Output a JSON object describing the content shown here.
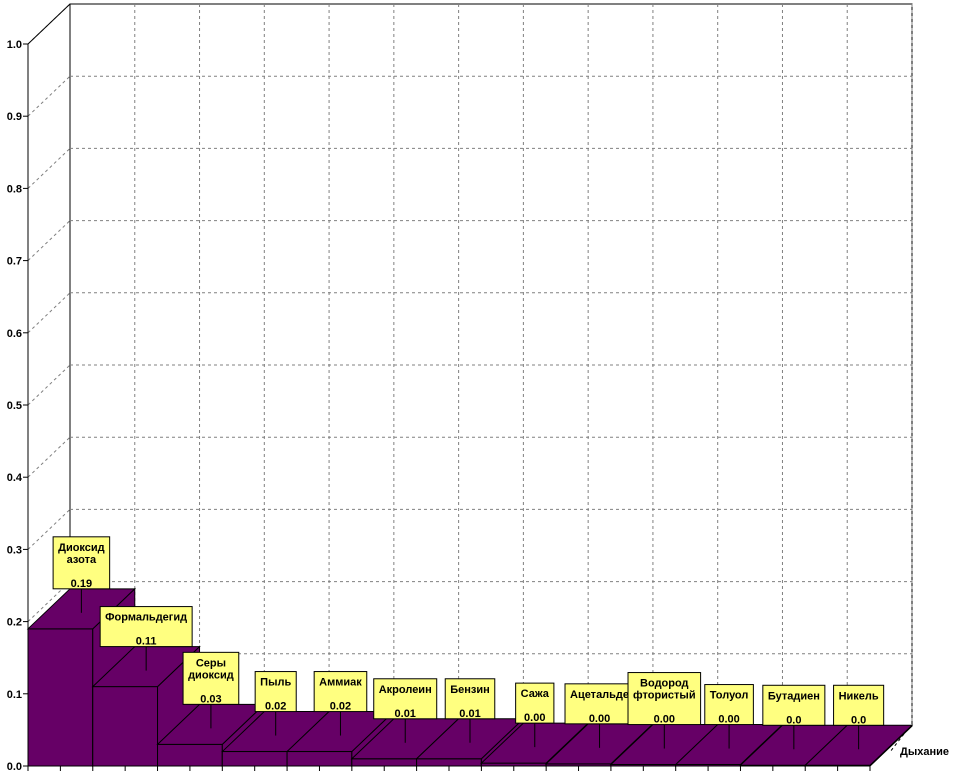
{
  "chart_data": {
    "type": "bar",
    "title": "",
    "xlabel": "",
    "ylabel": "",
    "ylim": [
      0,
      1.0
    ],
    "yticks": [
      "0.0",
      "0.1",
      "0.2",
      "0.3",
      "0.4",
      "0.5",
      "0.6",
      "0.7",
      "0.8",
      "0.9",
      "1.0"
    ],
    "depth_category": "Дыхание",
    "grid": true,
    "colors": {
      "bar": "#660066",
      "callout": "#ffff80",
      "grid": "#808080"
    },
    "categories": [
      {
        "label_lines": [
          "Диоксид",
          "азота"
        ],
        "value": 0.19,
        "value_label": "0.19"
      },
      {
        "label_lines": [
          "Формальдегид"
        ],
        "value": 0.11,
        "value_label": "0.11"
      },
      {
        "label_lines": [
          "Серы",
          "диоксид"
        ],
        "value": 0.03,
        "value_label": "0.03"
      },
      {
        "label_lines": [
          "Пыль"
        ],
        "value": 0.02,
        "value_label": "0.02"
      },
      {
        "label_lines": [
          "Аммиак"
        ],
        "value": 0.02,
        "value_label": "0.02"
      },
      {
        "label_lines": [
          "Акролеин"
        ],
        "value": 0.01,
        "value_label": "0.01"
      },
      {
        "label_lines": [
          "Бензин"
        ],
        "value": 0.01,
        "value_label": "0.01"
      },
      {
        "label_lines": [
          "Сажа"
        ],
        "value": 0.004,
        "value_label": "0.00"
      },
      {
        "label_lines": [
          "Ацетальде"
        ],
        "value": 0.003,
        "value_label": "0.00"
      },
      {
        "label_lines": [
          "Водород",
          "фтористый"
        ],
        "value": 0.002,
        "value_label": "0.00"
      },
      {
        "label_lines": [
          "Толуол"
        ],
        "value": 0.002,
        "value_label": "0.00"
      },
      {
        "label_lines": [
          "Бутадиен"
        ],
        "value": 0.001,
        "value_label": "0.0"
      },
      {
        "label_lines": [
          "Никель"
        ],
        "value": 0.001,
        "value_label": "0.0"
      }
    ]
  }
}
